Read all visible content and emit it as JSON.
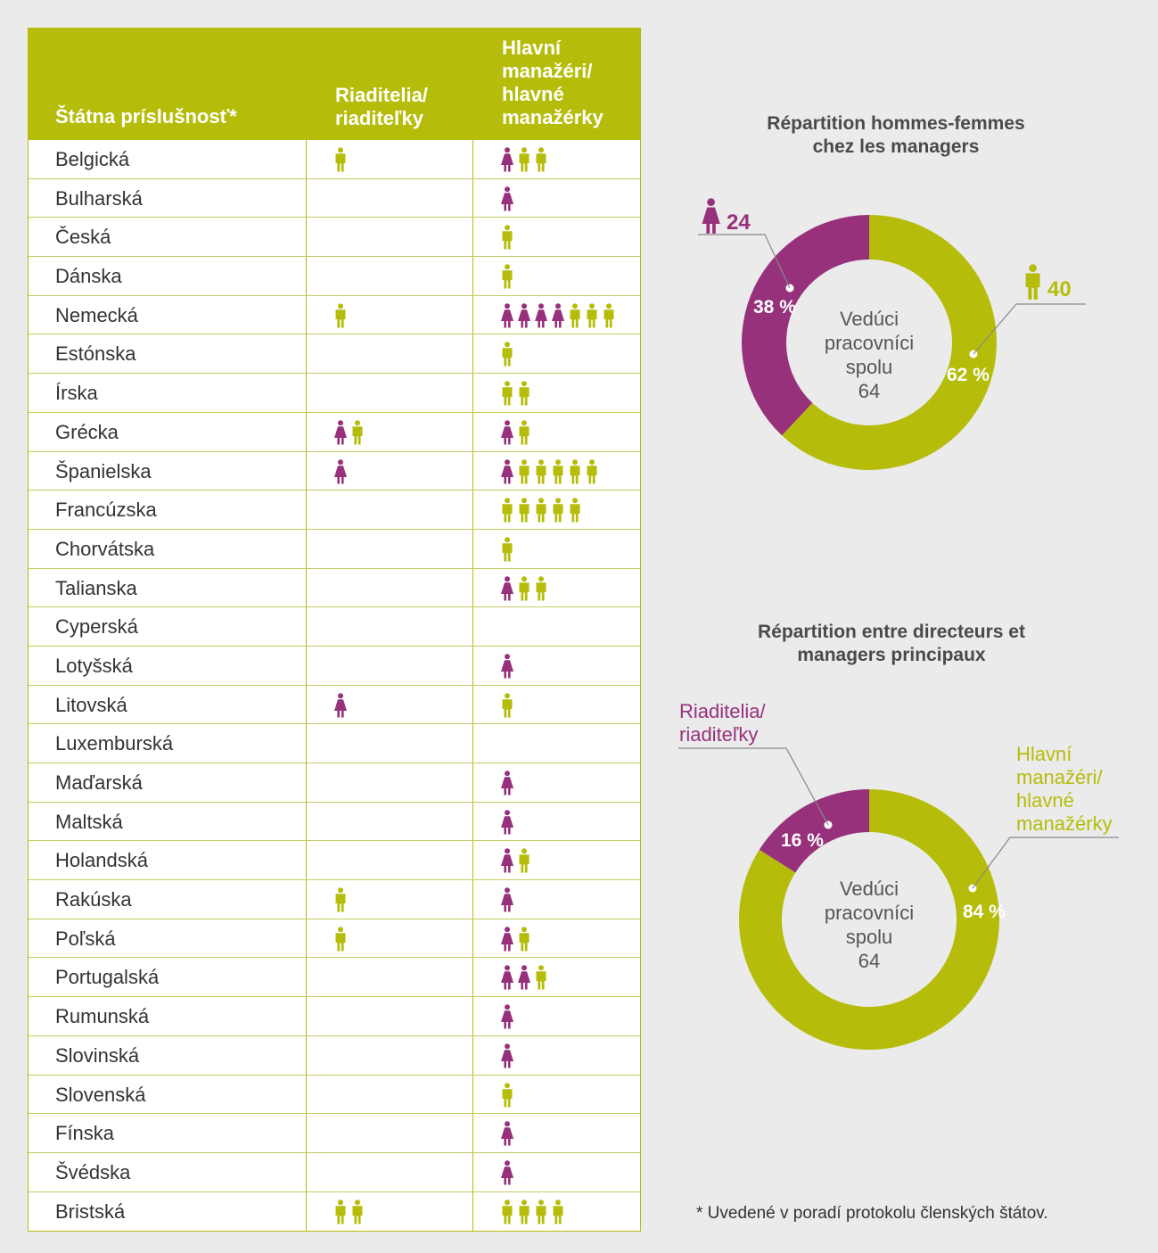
{
  "colors": {
    "female": "#98317c",
    "male": "#b5bd0a",
    "header_bg": "#b5bd0a"
  },
  "table": {
    "headers": [
      "Štátna príslušnosť*",
      "Riaditelia/\nriaditeľky",
      "Hlavní\nmanažéri/\nhlavné\nmanažérky"
    ],
    "rows": [
      {
        "country": "Belgická",
        "directors": [
          "m"
        ],
        "managers": [
          "f",
          "m",
          "m"
        ]
      },
      {
        "country": "Bulharská",
        "directors": [],
        "managers": [
          "f"
        ]
      },
      {
        "country": "Česká",
        "directors": [],
        "managers": [
          "m"
        ]
      },
      {
        "country": "Dánska",
        "directors": [],
        "managers": [
          "m"
        ]
      },
      {
        "country": "Nemecká",
        "directors": [
          "m"
        ],
        "managers": [
          "f",
          "f",
          "f",
          "f",
          "m",
          "m",
          "m"
        ]
      },
      {
        "country": "Estónska",
        "directors": [],
        "managers": [
          "m"
        ]
      },
      {
        "country": "Írska",
        "directors": [],
        "managers": [
          "m",
          "m"
        ]
      },
      {
        "country": "Grécka",
        "directors": [
          "f",
          "m"
        ],
        "managers": [
          "f",
          "m"
        ]
      },
      {
        "country": "Španielska",
        "directors": [
          "f"
        ],
        "managers": [
          "f",
          "m",
          "m",
          "m",
          "m",
          "m"
        ]
      },
      {
        "country": "Francúzska",
        "directors": [],
        "managers": [
          "m",
          "m",
          "m",
          "m",
          "m"
        ]
      },
      {
        "country": "Chorvátska",
        "directors": [],
        "managers": [
          "m"
        ]
      },
      {
        "country": "Talianska",
        "directors": [],
        "managers": [
          "f",
          "m",
          "m"
        ]
      },
      {
        "country": "Cyperská",
        "directors": [],
        "managers": []
      },
      {
        "country": "Lotyšská",
        "directors": [],
        "managers": [
          "f"
        ]
      },
      {
        "country": "Litovská",
        "directors": [
          "f"
        ],
        "managers": [
          "m"
        ]
      },
      {
        "country": "Luxemburská",
        "directors": [],
        "managers": []
      },
      {
        "country": "Maďarská",
        "directors": [],
        "managers": [
          "f"
        ]
      },
      {
        "country": "Maltská",
        "directors": [],
        "managers": [
          "f"
        ]
      },
      {
        "country": "Holandská",
        "directors": [],
        "managers": [
          "f",
          "m"
        ]
      },
      {
        "country": "Rakúska",
        "directors": [
          "m"
        ],
        "managers": [
          "f"
        ]
      },
      {
        "country": "Poľská",
        "directors": [
          "m"
        ],
        "managers": [
          "f",
          "m"
        ]
      },
      {
        "country": "Portugalská",
        "directors": [],
        "managers": [
          "f",
          "f",
          "m"
        ]
      },
      {
        "country": "Rumunská",
        "directors": [],
        "managers": [
          "f"
        ]
      },
      {
        "country": "Slovinská",
        "directors": [],
        "managers": [
          "f"
        ]
      },
      {
        "country": "Slovenská",
        "directors": [],
        "managers": [
          "m"
        ]
      },
      {
        "country": "Fínska",
        "directors": [],
        "managers": [
          "f"
        ]
      },
      {
        "country": "Švédska",
        "directors": [],
        "managers": [
          "f"
        ]
      },
      {
        "country": "Bristská",
        "directors": [
          "m",
          "m"
        ],
        "managers": [
          "m",
          "m",
          "m",
          "m"
        ]
      }
    ]
  },
  "chart_data": [
    {
      "type": "pie",
      "title": "Répartition hommes-femmes\nchez les managers",
      "center_label": "Vedúci\npracovníci\nspolu\n64",
      "slices": [
        {
          "label": "female",
          "count": "24",
          "value": 38,
          "value_label": "38 %",
          "color": "#98317c"
        },
        {
          "label": "male",
          "count": "40",
          "value": 62,
          "value_label": "62 %",
          "color": "#b5bd0a"
        }
      ]
    },
    {
      "type": "pie",
      "title": "Répartition entre directeurs et\nmanagers principaux",
      "center_label": "Vedúci\npracovníci\nspolu\n64",
      "slices": [
        {
          "label": "Riaditelia/\nriaditeľky",
          "value": 16,
          "value_label": "16 %",
          "color": "#98317c"
        },
        {
          "label": "Hlavní\nmanažéri/\nhlavné\nmanažérky",
          "value": 84,
          "value_label": "84 %",
          "color": "#b5bd0a"
        }
      ]
    }
  ],
  "footnote": "* Uvedené v poradí protokolu členských štátov."
}
